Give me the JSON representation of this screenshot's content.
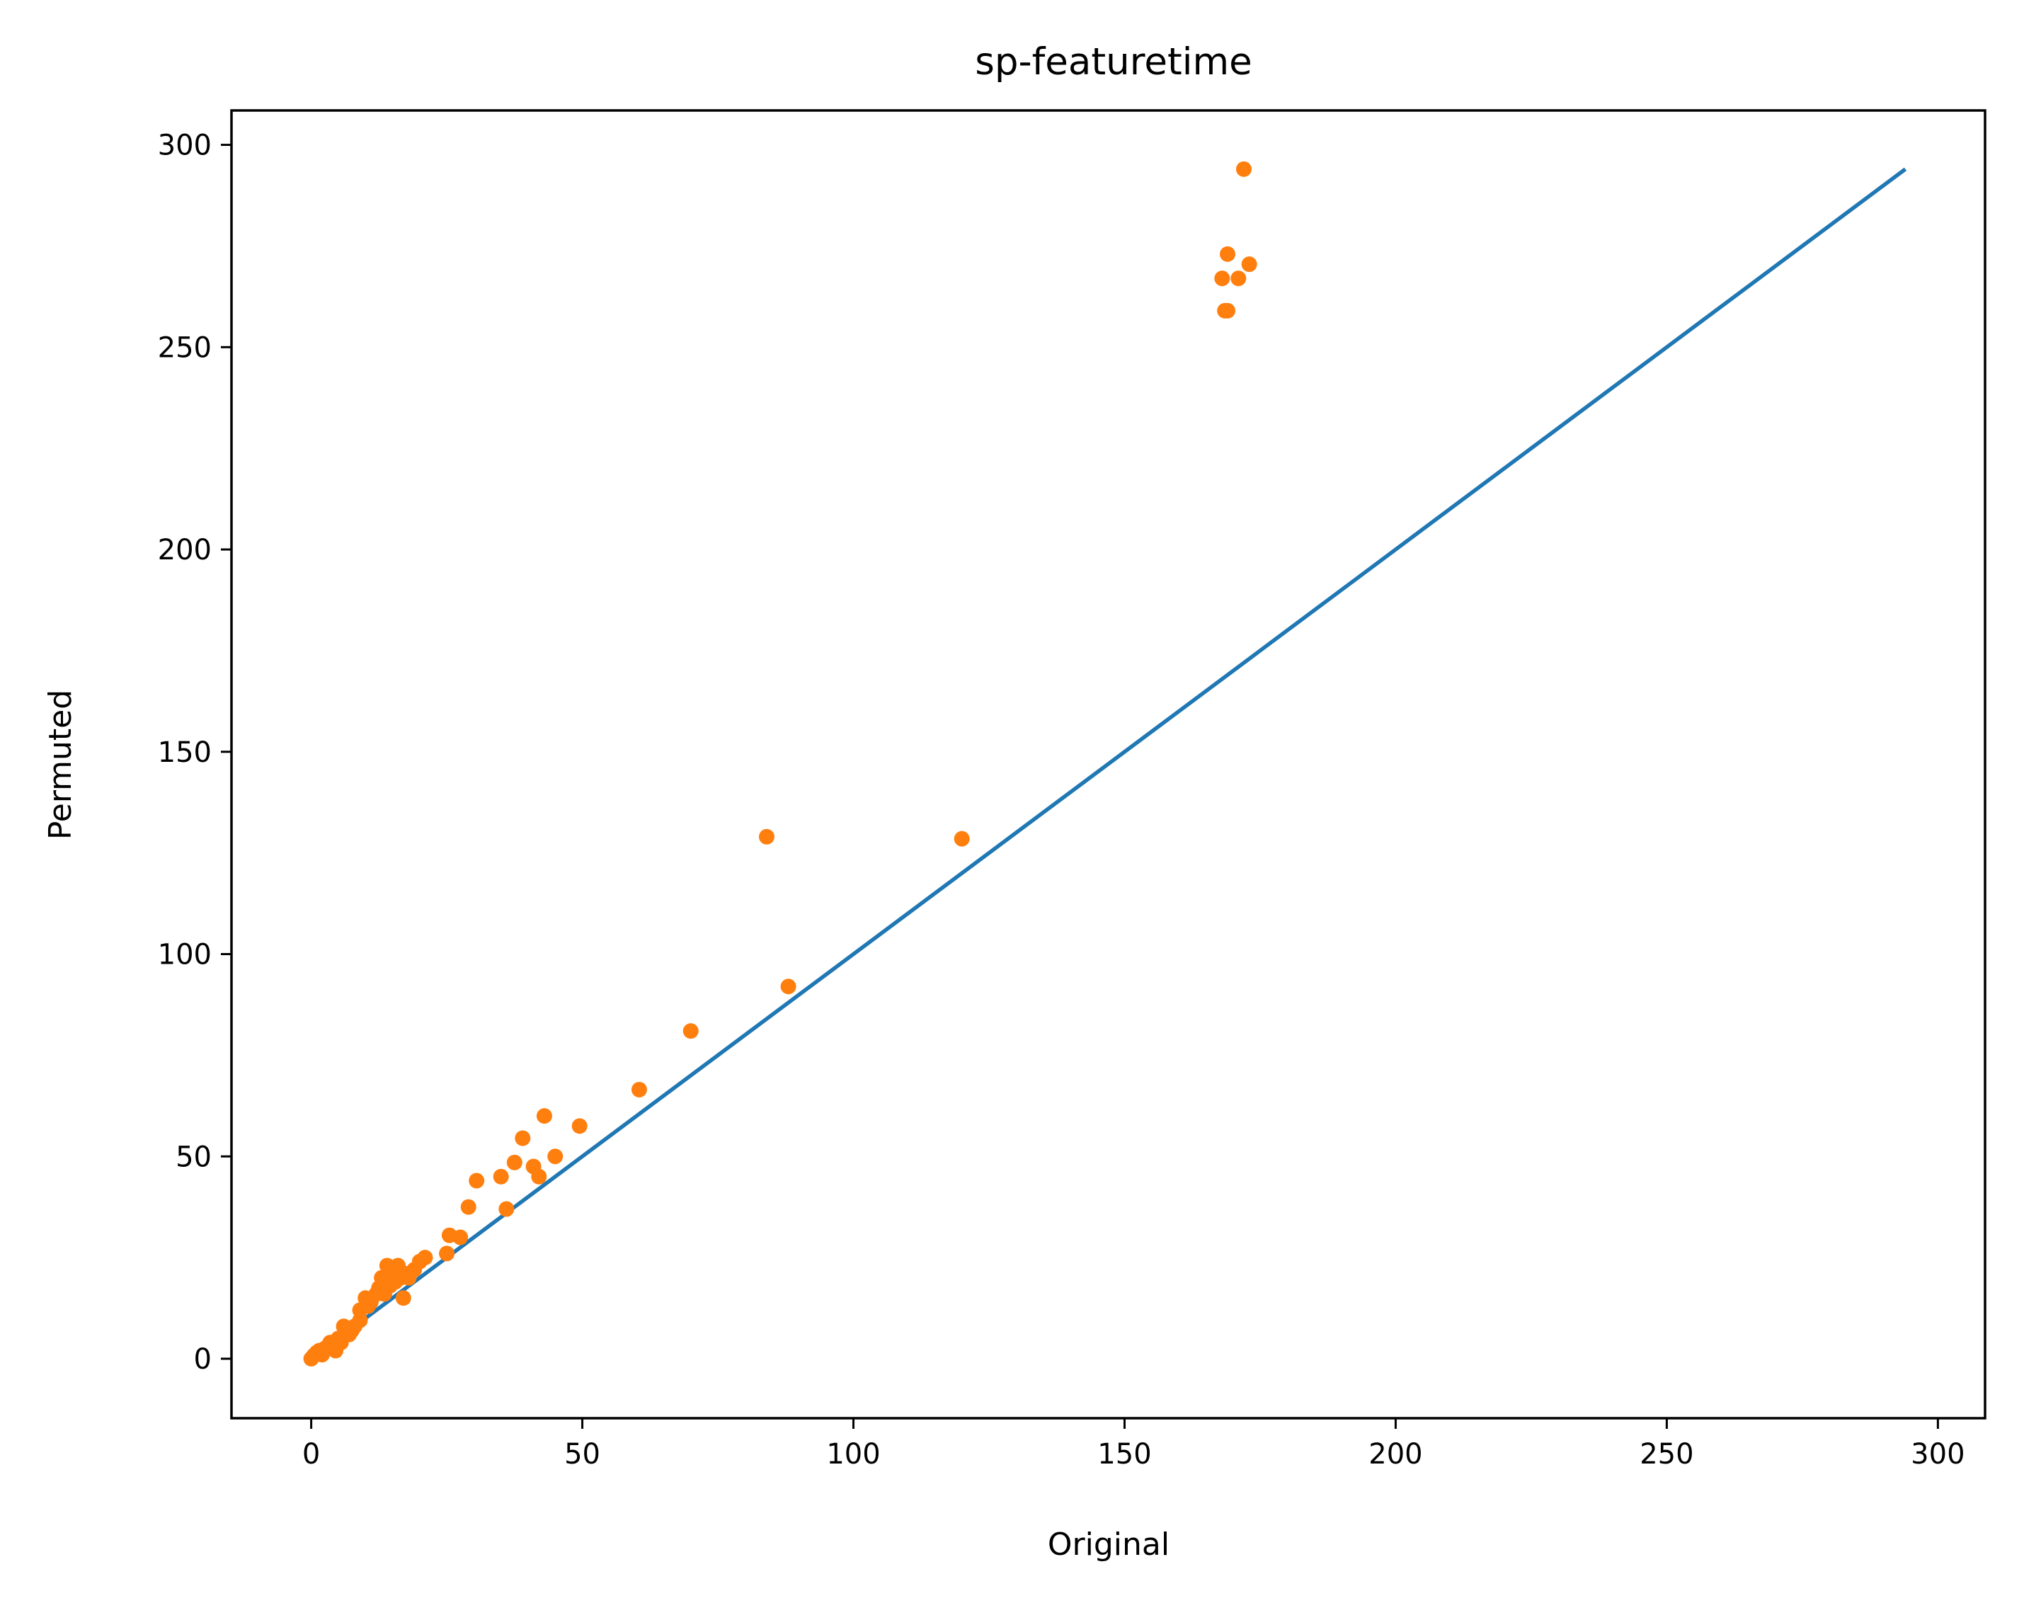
{
  "chart_data": {
    "type": "scatter",
    "title": "sp-featuretime",
    "xlabel": "Original",
    "ylabel": "Permuted",
    "xlim": [
      -14.7,
      308.7
    ],
    "ylim": [
      -14.7,
      308.5
    ],
    "xticks": [
      0,
      50,
      100,
      150,
      200,
      250,
      300
    ],
    "yticks": [
      0,
      50,
      100,
      150,
      200,
      250,
      300
    ],
    "grid": false,
    "legend": "none",
    "colors": {
      "line": "#1f77b4",
      "points": "#ff7f0e"
    },
    "line": {
      "x": [
        0,
        294
      ],
      "y": [
        0,
        294
      ]
    },
    "points": [
      [
        0,
        0
      ],
      [
        0.5,
        0.8
      ],
      [
        1,
        1.5
      ],
      [
        1.5,
        2
      ],
      [
        2,
        1
      ],
      [
        2.5,
        2.5
      ],
      [
        3,
        3
      ],
      [
        3.5,
        4
      ],
      [
        4,
        3.5
      ],
      [
        4.5,
        2
      ],
      [
        5,
        5
      ],
      [
        5.5,
        4
      ],
      [
        6,
        8
      ],
      [
        7,
        6
      ],
      [
        7.5,
        7
      ],
      [
        8,
        8
      ],
      [
        9,
        9.5
      ],
      [
        9,
        12
      ],
      [
        10,
        15
      ],
      [
        10.5,
        13
      ],
      [
        11,
        14
      ],
      [
        12,
        16
      ],
      [
        12.5,
        17.5
      ],
      [
        13,
        20
      ],
      [
        13.5,
        16
      ],
      [
        14,
        23
      ],
      [
        14.5,
        18
      ],
      [
        15,
        22
      ],
      [
        15.5,
        19
      ],
      [
        16,
        23
      ],
      [
        16.5,
        20
      ],
      [
        17,
        15
      ],
      [
        17.5,
        21
      ],
      [
        18,
        20
      ],
      [
        19,
        22
      ],
      [
        20,
        24
      ],
      [
        21,
        25
      ],
      [
        25,
        26
      ],
      [
        25.5,
        30.5
      ],
      [
        27.5,
        30
      ],
      [
        29,
        37.5
      ],
      [
        30.5,
        44
      ],
      [
        35,
        45
      ],
      [
        36,
        37
      ],
      [
        37.5,
        48.5
      ],
      [
        39,
        54.5
      ],
      [
        41,
        47.5
      ],
      [
        42,
        45
      ],
      [
        43,
        60
      ],
      [
        45,
        50
      ],
      [
        49.5,
        57.5
      ],
      [
        60.5,
        66.5
      ],
      [
        70,
        81
      ],
      [
        84,
        129
      ],
      [
        88,
        92
      ],
      [
        120,
        128.5
      ],
      [
        168,
        267
      ],
      [
        168.5,
        259
      ],
      [
        169,
        273
      ],
      [
        169,
        259
      ],
      [
        171,
        267
      ],
      [
        172,
        294
      ],
      [
        173,
        270.5
      ]
    ]
  }
}
